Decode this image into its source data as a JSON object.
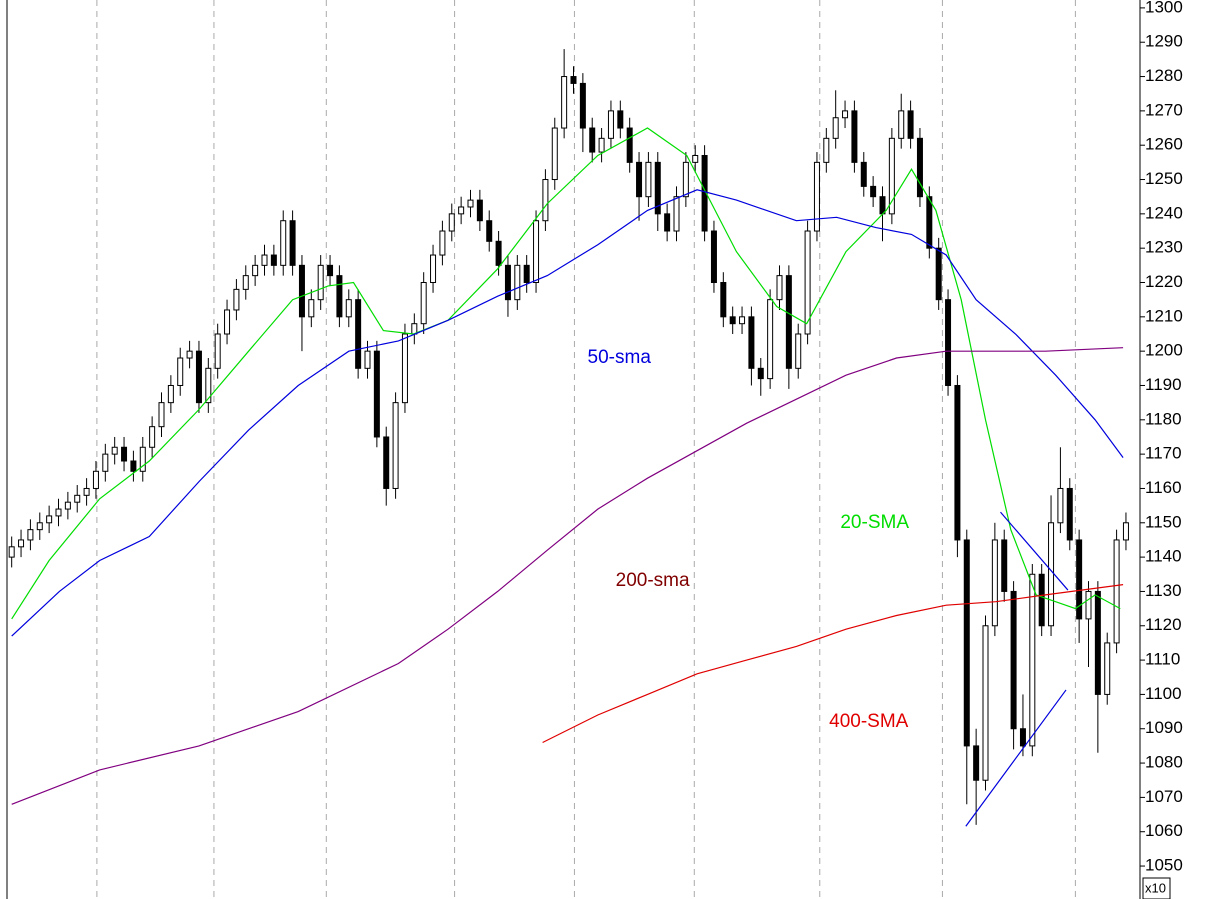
{
  "chart_data": {
    "type": "candlestick",
    "xlim": [
      -0.5,
      120.5
    ],
    "ylim": [
      1040.4,
      1302.3
    ],
    "yticks": [
      1050,
      1060,
      1070,
      1080,
      1090,
      1100,
      1110,
      1120,
      1130,
      1140,
      1150,
      1160,
      1170,
      1180,
      1190,
      1200,
      1210,
      1220,
      1230,
      1240,
      1250,
      1260,
      1270,
      1280,
      1290,
      1300
    ],
    "axis_multiplier": "x10",
    "xgrid_at": [
      9.1,
      21.6,
      33.6,
      47.3,
      60.1,
      72.9,
      86.3,
      99.4,
      113.6
    ],
    "up_color": "#ffffff",
    "down_color": "#000000",
    "open": [
      1140,
      1143,
      1145,
      1148,
      1150,
      1152,
      1154,
      1156,
      1158,
      1160,
      1165,
      1170,
      1172,
      1168,
      1165,
      1172,
      1178,
      1185,
      1190,
      1198,
      1200,
      1185,
      1195,
      1205,
      1212,
      1218,
      1222,
      1225,
      1228,
      1225,
      1238,
      1225,
      1210,
      1215,
      1225,
      1222,
      1210,
      1215,
      1195,
      1200,
      1175,
      1160,
      1185,
      1205,
      1208,
      1220,
      1228,
      1235,
      1240,
      1242,
      1244,
      1238,
      1232,
      1225,
      1215,
      1225,
      1220,
      1238,
      1250,
      1265,
      1280,
      1278,
      1265,
      1258,
      1262,
      1270,
      1265,
      1255,
      1245,
      1255,
      1240,
      1235,
      1245,
      1255,
      1257,
      1235,
      1220,
      1210,
      1208,
      1210,
      1195,
      1192,
      1215,
      1222,
      1195,
      1205,
      1235,
      1255,
      1262,
      1268,
      1270,
      1255,
      1248,
      1245,
      1240,
      1262,
      1270,
      1262,
      1245,
      1230,
      1215,
      1190,
      1145,
      1085,
      1075,
      1120,
      1145,
      1130,
      1090,
      1085,
      1135,
      1120,
      1150,
      1160,
      1145,
      1122,
      1130,
      1100,
      1115,
      1145
    ],
    "high": [
      1146,
      1148,
      1151,
      1153,
      1155,
      1157,
      1159,
      1161,
      1163,
      1168,
      1173,
      1175,
      1175,
      1171,
      1175,
      1181,
      1188,
      1193,
      1201,
      1203,
      1203,
      1198,
      1208,
      1215,
      1221,
      1225,
      1228,
      1231,
      1231,
      1241,
      1241,
      1228,
      1218,
      1228,
      1228,
      1225,
      1218,
      1218,
      1203,
      1203,
      1178,
      1188,
      1208,
      1211,
      1223,
      1231,
      1238,
      1243,
      1245,
      1247,
      1247,
      1241,
      1235,
      1228,
      1228,
      1228,
      1241,
      1253,
      1268,
      1288,
      1283,
      1281,
      1268,
      1265,
      1273,
      1273,
      1268,
      1258,
      1258,
      1258,
      1243,
      1248,
      1258,
      1260,
      1260,
      1238,
      1223,
      1213,
      1213,
      1213,
      1198,
      1218,
      1225,
      1225,
      1208,
      1238,
      1258,
      1265,
      1276,
      1273,
      1273,
      1258,
      1251,
      1248,
      1265,
      1275,
      1273,
      1265,
      1248,
      1233,
      1218,
      1193,
      1148,
      1090,
      1123,
      1150,
      1148,
      1133,
      1100,
      1138,
      1138,
      1158,
      1172,
      1163,
      1148,
      1133,
      1133,
      1118,
      1148,
      1153
    ],
    "low": [
      1137,
      1140,
      1142,
      1145,
      1147,
      1149,
      1151,
      1153,
      1155,
      1157,
      1162,
      1167,
      1165,
      1162,
      1162,
      1169,
      1175,
      1182,
      1187,
      1195,
      1182,
      1182,
      1192,
      1202,
      1209,
      1215,
      1219,
      1222,
      1222,
      1222,
      1222,
      1200,
      1207,
      1212,
      1219,
      1207,
      1207,
      1192,
      1192,
      1172,
      1155,
      1157,
      1182,
      1202,
      1205,
      1217,
      1225,
      1232,
      1237,
      1239,
      1235,
      1229,
      1222,
      1210,
      1212,
      1217,
      1217,
      1235,
      1247,
      1262,
      1275,
      1258,
      1255,
      1255,
      1259,
      1262,
      1252,
      1238,
      1242,
      1235,
      1232,
      1232,
      1242,
      1252,
      1232,
      1217,
      1207,
      1205,
      1205,
      1190,
      1187,
      1189,
      1212,
      1189,
      1192,
      1202,
      1232,
      1252,
      1259,
      1265,
      1252,
      1245,
      1242,
      1232,
      1237,
      1259,
      1259,
      1242,
      1227,
      1212,
      1187,
      1140,
      1068,
      1062,
      1072,
      1117,
      1127,
      1084,
      1082,
      1082,
      1117,
      1117,
      1147,
      1142,
      1115,
      1108,
      1083,
      1097,
      1112,
      1142
    ],
    "close": [
      1143,
      1145,
      1148,
      1150,
      1152,
      1154,
      1156,
      1158,
      1160,
      1165,
      1170,
      1172,
      1168,
      1165,
      1172,
      1178,
      1185,
      1190,
      1198,
      1200,
      1185,
      1195,
      1205,
      1212,
      1218,
      1222,
      1225,
      1228,
      1225,
      1238,
      1225,
      1210,
      1215,
      1225,
      1222,
      1210,
      1215,
      1195,
      1200,
      1175,
      1160,
      1185,
      1205,
      1208,
      1220,
      1228,
      1235,
      1240,
      1242,
      1244,
      1238,
      1232,
      1225,
      1215,
      1225,
      1220,
      1238,
      1250,
      1265,
      1280,
      1278,
      1265,
      1258,
      1262,
      1270,
      1265,
      1255,
      1245,
      1255,
      1240,
      1235,
      1245,
      1255,
      1257,
      1235,
      1220,
      1210,
      1208,
      1210,
      1195,
      1192,
      1215,
      1222,
      1195,
      1205,
      1235,
      1255,
      1262,
      1268,
      1270,
      1255,
      1248,
      1245,
      1240,
      1262,
      1270,
      1262,
      1245,
      1230,
      1215,
      1190,
      1145,
      1085,
      1075,
      1120,
      1145,
      1130,
      1090,
      1085,
      1135,
      1120,
      1150,
      1160,
      1145,
      1122,
      1130,
      1100,
      1115,
      1145,
      1150
    ],
    "overlays": [
      {
        "name": "20-SMA",
        "color": "#00dd00",
        "x": [
          0,
          4,
          9.4,
          14.7,
          20,
          25.3,
          30,
          33.8,
          36.5,
          39.7,
          42.9,
          46.6,
          51.9,
          57.2,
          62.6,
          67.9,
          72.1,
          77.4,
          81.7,
          84.9,
          89.1,
          93.4,
          96.1,
          98.7,
          101.4,
          104,
          106.7,
          109.4,
          113.6,
          115.7,
          118.4
        ],
        "values": [
          1122,
          1139,
          1157,
          1168,
          1183,
          1200,
          1215,
          1219,
          1220,
          1206,
          1205,
          1209,
          1224,
          1243,
          1257,
          1265,
          1257,
          1229,
          1213,
          1208,
          1229,
          1241,
          1253,
          1241,
          1215,
          1180,
          1148,
          1129,
          1125,
          1129,
          1125
        ]
      },
      {
        "name": "50-sma",
        "color": "#0000dd",
        "x": [
          0,
          5.1,
          9.4,
          14.7,
          20,
          25.3,
          30.6,
          36,
          41.3,
          46.6,
          51.9,
          57.2,
          62.6,
          67.9,
          73.2,
          77.4,
          83.8,
          88.1,
          92.3,
          96.1,
          99.8,
          103,
          107.2,
          111.5,
          115.7,
          118.7
        ],
        "values": [
          1117,
          1130,
          1139,
          1146,
          1162,
          1177,
          1190,
          1200,
          1203,
          1209,
          1216,
          1222,
          1231,
          1241,
          1247,
          1244,
          1238,
          1239,
          1236,
          1234,
          1228,
          1215,
          1205,
          1193,
          1180,
          1169
        ]
      },
      {
        "name": "200-sma",
        "color": "#800080",
        "label_color": "#800000",
        "x": [
          0,
          9.4,
          20,
          30.6,
          41.3,
          46.6,
          51.9,
          57.2,
          62.6,
          67.9,
          73.2,
          78.5,
          83.8,
          89.1,
          94.5,
          99.8,
          105.1,
          110.4,
          118.7
        ],
        "values": [
          1068,
          1078,
          1085,
          1095,
          1109,
          1119,
          1130,
          1142,
          1154,
          1163,
          1171,
          1179,
          1186,
          1193,
          1198,
          1200,
          1200,
          1200,
          1201
        ]
      },
      {
        "name": "400-SMA",
        "color": "#e00000",
        "x": [
          56.7,
          62.6,
          67.9,
          73.2,
          78.5,
          83.8,
          89.1,
          94.5,
          99.8,
          105.1,
          110.4,
          118.7
        ],
        "values": [
          1086,
          1094,
          1100,
          1106,
          1110,
          1114,
          1119,
          1123,
          1126,
          1127,
          1129,
          1132
        ]
      }
    ],
    "trendlines": [
      {
        "color": "#0000dd",
        "x": [
          105.6,
          112.8
        ],
        "values": [
          1153.1,
          1130.4
        ]
      },
      {
        "color": "#0000dd",
        "x": [
          101.9,
          112.6
        ],
        "values": [
          1061.6,
          1101.3
        ]
      }
    ],
    "annotations": [
      {
        "text": "50-sma",
        "x": 61.5,
        "y": 1198,
        "color": "#0000dd"
      },
      {
        "text": "20-SMA",
        "x": 88.5,
        "y": 1150,
        "color": "#00dd00"
      },
      {
        "text": "200-sma",
        "x": 64.5,
        "y": 1133,
        "color": "#800000"
      },
      {
        "text": "400-SMA",
        "x": 87.3,
        "y": 1092,
        "color": "#e00000"
      }
    ]
  }
}
